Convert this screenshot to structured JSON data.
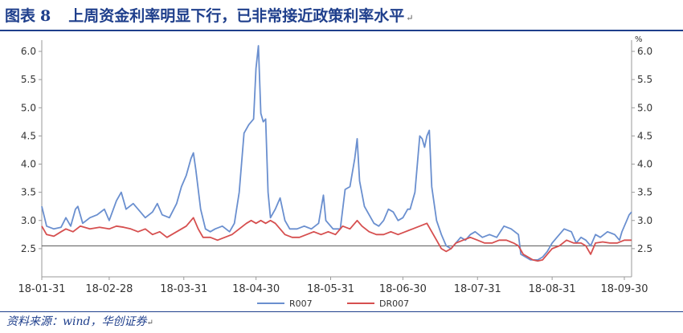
{
  "title": {
    "prefix": "图表",
    "number": "8",
    "text": "上周资金利率明显下行，已非常接近政策利率水平",
    "end_mark": "↵"
  },
  "source": {
    "text": "资料来源：wind，华创证券",
    "end_mark": "↵"
  },
  "colors": {
    "title": "#1f3f8c",
    "r007": "#6a8fcf",
    "dr007": "#d64f4f",
    "axis": "#9a9a9a",
    "reference_line": "#555555"
  },
  "chart_data": {
    "type": "line",
    "title": "",
    "xlabel": "",
    "ylabel": "",
    "ylim": [
      2.0,
      6.2
    ],
    "yticks": [
      "2.5",
      "3.0",
      "3.5",
      "4.0",
      "4.5",
      "5.0",
      "5.5",
      "6.0"
    ],
    "ytick_values": [
      2.5,
      3.0,
      3.5,
      4.0,
      4.5,
      5.0,
      5.5,
      6.0
    ],
    "y_unit_right": "%",
    "secondary_axis": "right (mirrors left)",
    "reference_line": 2.55,
    "xticks": [
      "18-01-31",
      "18-02-28",
      "18-03-31",
      "18-04-30",
      "18-05-31",
      "18-06-30",
      "18-07-31",
      "18-08-31",
      "18-09-30"
    ],
    "x_index_range": [
      0,
      245
    ],
    "xtick_index": [
      0,
      28,
      59,
      89,
      120,
      150,
      181,
      212,
      242
    ],
    "legend": {
      "position": "bottom"
    },
    "series": [
      {
        "name": "R007",
        "color": "#6a8fcf",
        "points": [
          [
            0,
            3.25
          ],
          [
            2,
            2.9
          ],
          [
            5,
            2.85
          ],
          [
            8,
            2.88
          ],
          [
            10,
            3.05
          ],
          [
            12,
            2.9
          ],
          [
            14,
            3.2
          ],
          [
            15,
            3.25
          ],
          [
            17,
            2.95
          ],
          [
            20,
            3.05
          ],
          [
            23,
            3.1
          ],
          [
            26,
            3.2
          ],
          [
            28,
            3.0
          ],
          [
            31,
            3.35
          ],
          [
            33,
            3.5
          ],
          [
            35,
            3.2
          ],
          [
            38,
            3.3
          ],
          [
            41,
            3.15
          ],
          [
            43,
            3.05
          ],
          [
            46,
            3.15
          ],
          [
            48,
            3.3
          ],
          [
            50,
            3.1
          ],
          [
            53,
            3.05
          ],
          [
            56,
            3.3
          ],
          [
            58,
            3.6
          ],
          [
            60,
            3.8
          ],
          [
            62,
            4.1
          ],
          [
            63,
            4.2
          ],
          [
            64,
            3.9
          ],
          [
            66,
            3.2
          ],
          [
            68,
            2.85
          ],
          [
            70,
            2.8
          ],
          [
            72,
            2.85
          ],
          [
            75,
            2.9
          ],
          [
            78,
            2.8
          ],
          [
            80,
            2.95
          ],
          [
            82,
            3.5
          ],
          [
            84,
            4.55
          ],
          [
            86,
            4.7
          ],
          [
            88,
            4.8
          ],
          [
            89,
            5.7
          ],
          [
            90,
            6.1
          ],
          [
            91,
            4.9
          ],
          [
            92,
            4.75
          ],
          [
            93,
            4.8
          ],
          [
            94,
            3.5
          ],
          [
            95,
            3.05
          ],
          [
            97,
            3.2
          ],
          [
            99,
            3.4
          ],
          [
            101,
            3.0
          ],
          [
            103,
            2.85
          ],
          [
            106,
            2.85
          ],
          [
            109,
            2.9
          ],
          [
            112,
            2.85
          ],
          [
            115,
            2.95
          ],
          [
            117,
            3.45
          ],
          [
            118,
            3.0
          ],
          [
            121,
            2.85
          ],
          [
            124,
            2.85
          ],
          [
            126,
            3.55
          ],
          [
            128,
            3.6
          ],
          [
            130,
            4.1
          ],
          [
            131,
            4.45
          ],
          [
            132,
            3.7
          ],
          [
            134,
            3.25
          ],
          [
            136,
            3.1
          ],
          [
            138,
            2.95
          ],
          [
            140,
            2.9
          ],
          [
            142,
            3.0
          ],
          [
            144,
            3.2
          ],
          [
            146,
            3.15
          ],
          [
            148,
            3.0
          ],
          [
            150,
            3.05
          ],
          [
            152,
            3.2
          ],
          [
            153,
            3.2
          ],
          [
            155,
            3.5
          ],
          [
            157,
            4.5
          ],
          [
            158,
            4.45
          ],
          [
            159,
            4.3
          ],
          [
            160,
            4.5
          ],
          [
            161,
            4.6
          ],
          [
            162,
            3.6
          ],
          [
            164,
            3.0
          ],
          [
            166,
            2.75
          ],
          [
            168,
            2.55
          ],
          [
            170,
            2.5
          ],
          [
            172,
            2.6
          ],
          [
            174,
            2.7
          ],
          [
            176,
            2.65
          ],
          [
            178,
            2.75
          ],
          [
            180,
            2.8
          ],
          [
            183,
            2.7
          ],
          [
            186,
            2.75
          ],
          [
            189,
            2.7
          ],
          [
            192,
            2.9
          ],
          [
            195,
            2.85
          ],
          [
            198,
            2.75
          ],
          [
            199,
            2.4
          ],
          [
            201,
            2.35
          ],
          [
            203,
            2.3
          ],
          [
            206,
            2.3
          ],
          [
            208,
            2.35
          ],
          [
            210,
            2.45
          ],
          [
            212,
            2.6
          ],
          [
            214,
            2.7
          ],
          [
            217,
            2.85
          ],
          [
            220,
            2.8
          ],
          [
            222,
            2.6
          ],
          [
            224,
            2.7
          ],
          [
            226,
            2.65
          ],
          [
            228,
            2.55
          ],
          [
            230,
            2.75
          ],
          [
            232,
            2.7
          ],
          [
            235,
            2.8
          ],
          [
            238,
            2.75
          ],
          [
            240,
            2.65
          ],
          [
            241,
            2.8
          ],
          [
            243,
            3.0
          ],
          [
            244,
            3.1
          ],
          [
            245,
            3.15
          ],
          [
            246,
            2.95
          ],
          [
            248,
            3.0
          ],
          [
            250,
            2.9
          ],
          [
            253,
            2.8
          ],
          [
            255,
            2.75
          ],
          [
            258,
            2.65
          ],
          [
            260,
            2.65
          ]
        ]
      },
      {
        "name": "DR007",
        "color": "#d64f4f",
        "points": [
          [
            0,
            2.9
          ],
          [
            2,
            2.75
          ],
          [
            5,
            2.72
          ],
          [
            8,
            2.8
          ],
          [
            10,
            2.85
          ],
          [
            13,
            2.8
          ],
          [
            16,
            2.9
          ],
          [
            20,
            2.85
          ],
          [
            24,
            2.88
          ],
          [
            28,
            2.85
          ],
          [
            31,
            2.9
          ],
          [
            34,
            2.88
          ],
          [
            37,
            2.85
          ],
          [
            40,
            2.8
          ],
          [
            43,
            2.85
          ],
          [
            46,
            2.75
          ],
          [
            49,
            2.8
          ],
          [
            52,
            2.7
          ],
          [
            54,
            2.75
          ],
          [
            56,
            2.8
          ],
          [
            58,
            2.85
          ],
          [
            60,
            2.9
          ],
          [
            62,
            3.0
          ],
          [
            63,
            3.05
          ],
          [
            65,
            2.85
          ],
          [
            67,
            2.7
          ],
          [
            70,
            2.7
          ],
          [
            73,
            2.65
          ],
          [
            76,
            2.7
          ],
          [
            79,
            2.75
          ],
          [
            82,
            2.85
          ],
          [
            85,
            2.95
          ],
          [
            87,
            3.0
          ],
          [
            89,
            2.95
          ],
          [
            91,
            3.0
          ],
          [
            93,
            2.95
          ],
          [
            95,
            3.0
          ],
          [
            97,
            2.95
          ],
          [
            99,
            2.85
          ],
          [
            101,
            2.75
          ],
          [
            104,
            2.7
          ],
          [
            107,
            2.7
          ],
          [
            110,
            2.75
          ],
          [
            113,
            2.8
          ],
          [
            116,
            2.75
          ],
          [
            119,
            2.8
          ],
          [
            122,
            2.75
          ],
          [
            125,
            2.9
          ],
          [
            128,
            2.85
          ],
          [
            130,
            2.95
          ],
          [
            131,
            3.0
          ],
          [
            133,
            2.9
          ],
          [
            136,
            2.8
          ],
          [
            139,
            2.75
          ],
          [
            142,
            2.75
          ],
          [
            145,
            2.8
          ],
          [
            148,
            2.75
          ],
          [
            151,
            2.8
          ],
          [
            154,
            2.85
          ],
          [
            157,
            2.9
          ],
          [
            160,
            2.95
          ],
          [
            162,
            2.8
          ],
          [
            164,
            2.65
          ],
          [
            166,
            2.5
          ],
          [
            168,
            2.45
          ],
          [
            170,
            2.5
          ],
          [
            172,
            2.6
          ],
          [
            175,
            2.65
          ],
          [
            178,
            2.7
          ],
          [
            181,
            2.65
          ],
          [
            184,
            2.6
          ],
          [
            187,
            2.6
          ],
          [
            190,
            2.65
          ],
          [
            193,
            2.65
          ],
          [
            196,
            2.6
          ],
          [
            198,
            2.55
          ],
          [
            200,
            2.4
          ],
          [
            202,
            2.35
          ],
          [
            204,
            2.3
          ],
          [
            206,
            2.28
          ],
          [
            208,
            2.3
          ],
          [
            210,
            2.4
          ],
          [
            212,
            2.5
          ],
          [
            215,
            2.55
          ],
          [
            218,
            2.65
          ],
          [
            221,
            2.6
          ],
          [
            224,
            2.6
          ],
          [
            226,
            2.55
          ],
          [
            228,
            2.4
          ],
          [
            230,
            2.6
          ],
          [
            233,
            2.62
          ],
          [
            236,
            2.6
          ],
          [
            239,
            2.6
          ],
          [
            242,
            2.65
          ],
          [
            245,
            2.65
          ],
          [
            247,
            2.7
          ],
          [
            250,
            2.65
          ],
          [
            253,
            2.6
          ],
          [
            256,
            2.55
          ],
          [
            260,
            2.55
          ]
        ]
      }
    ]
  }
}
